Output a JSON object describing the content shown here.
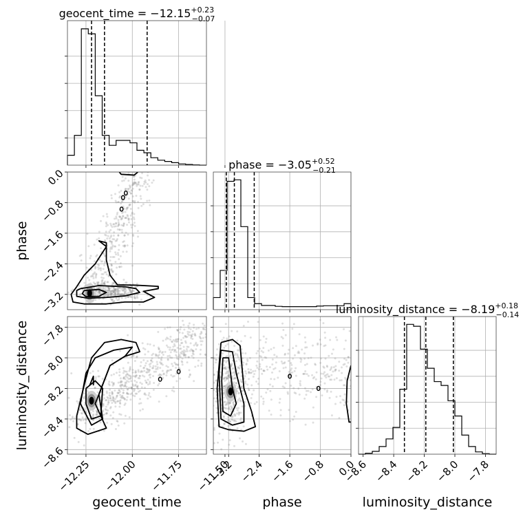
{
  "chart_data": {
    "type": "corner",
    "parameters": [
      {
        "name": "geocent_time",
        "axis_label": "geocent_time",
        "title_main": "geocent_time = −12.15",
        "title_sup": "+0.23",
        "title_sub": "−0.07",
        "range": [
          -12.35,
          -11.6
        ],
        "tick_values": [
          -12.25,
          -12.0,
          -11.75,
          -11.5
        ],
        "tick_labels": [
          "−12.25",
          "−12.00",
          "−11.75",
          "−11.50"
        ],
        "quantiles": [
          -12.22,
          -12.15,
          -11.92
        ],
        "hist_counts": [
          4,
          12,
          55,
          53,
          28,
          12,
          8,
          10,
          10,
          9,
          6,
          5,
          3,
          2,
          1.5,
          1,
          0.5,
          0.3,
          0.1,
          0
        ]
      },
      {
        "name": "phase",
        "axis_label": "phase",
        "title_main": "phase = −3.05",
        "title_sup": "+0.52",
        "title_sub": "−0.21",
        "range": [
          -3.6,
          0.0
        ],
        "tick_values": [
          -3.2,
          -2.4,
          -1.6,
          -0.8,
          0.0
        ],
        "tick_labels": [
          "−3.2",
          "−2.4",
          "−1.6",
          "−0.8",
          "0.0"
        ],
        "quantiles": [
          -3.26,
          -3.05,
          -2.53
        ],
        "hist_counts": [
          8,
          26,
          85,
          86,
          55,
          8,
          4,
          2.8,
          2.8,
          2.2,
          2,
          2,
          2,
          2,
          2,
          2.4,
          2.6,
          2.6,
          2.6,
          4
        ]
      },
      {
        "name": "luminosity_distance",
        "axis_label": "luminosity_distance",
        "title_main": "luminosity_distance = −8.19",
        "title_sup": "+0.18",
        "title_sub": "−0.14",
        "range": [
          -8.63,
          -7.73
        ],
        "tick_values": [
          -8.6,
          -8.4,
          -8.2,
          -8.0,
          -7.8
        ],
        "tick_labels": [
          "−8.6",
          "−8.4",
          "−8.2",
          "−8.0",
          "−7.8"
        ],
        "quantiles": [
          -8.33,
          -8.19,
          -8.01
        ],
        "hist_counts": [
          0,
          0.5,
          1.5,
          4,
          8,
          14,
          34,
          68,
          67,
          55,
          45,
          38,
          36,
          28,
          20,
          10,
          4,
          1.2,
          0.3,
          0
        ]
      }
    ],
    "contours_2d": {
      "phase_vs_geocent_time": {
        "outer": [
          [
            -12.3,
            -3.0
          ],
          [
            -12.26,
            -2.7
          ],
          [
            -12.2,
            -2.4
          ],
          [
            -12.16,
            -2.1
          ],
          [
            -12.14,
            -1.95
          ],
          [
            -12.18,
            -1.8
          ],
          [
            -12.14,
            -1.85
          ],
          [
            -12.14,
            -2.3
          ],
          [
            -12.12,
            -2.7
          ],
          [
            -12.08,
            -2.95
          ],
          [
            -11.98,
            -2.96
          ],
          [
            -11.86,
            -2.99
          ],
          [
            -11.86,
            -3.05
          ],
          [
            -11.94,
            -3.12
          ],
          [
            -11.88,
            -3.28
          ],
          [
            -11.94,
            -3.4
          ],
          [
            -12.04,
            -3.4
          ],
          [
            -12.14,
            -3.45
          ],
          [
            -12.26,
            -3.45
          ],
          [
            -12.32,
            -3.4
          ],
          [
            -12.33,
            -3.2
          ],
          [
            -12.3,
            -3.0
          ]
        ],
        "inner": [
          [
            -12.28,
            -3.05
          ],
          [
            -12.18,
            -2.97
          ],
          [
            -12.04,
            -3.0
          ],
          [
            -11.98,
            -3.05
          ],
          [
            -11.96,
            -3.15
          ],
          [
            -12.04,
            -3.24
          ],
          [
            -12.14,
            -3.28
          ],
          [
            -12.24,
            -3.3
          ],
          [
            -12.3,
            -3.25
          ],
          [
            -12.3,
            -3.1
          ],
          [
            -12.28,
            -3.05
          ]
        ],
        "core": [
          [
            -12.26,
            -3.1
          ],
          [
            -12.18,
            -3.07
          ],
          [
            -12.14,
            -3.15
          ],
          [
            -12.18,
            -3.25
          ],
          [
            -12.25,
            -3.26
          ],
          [
            -12.27,
            -3.18
          ],
          [
            -12.26,
            -3.1
          ]
        ],
        "top_band": [
          [
            -12.07,
            0.0
          ],
          [
            -12.06,
            -0.06
          ],
          [
            -11.99,
            -0.08
          ],
          [
            -11.97,
            0.0
          ]
        ],
        "blips": [
          [
            -12.035,
            -0.55
          ],
          [
            -12.05,
            -0.67
          ],
          [
            -12.058,
            -0.97
          ]
        ],
        "density_peak": [
          -12.23,
          -3.17
        ]
      },
      "luminosity_distance_vs_geocent_time": {
        "outer": [
          [
            -12.3,
            -8.38
          ],
          [
            -12.26,
            -8.18
          ],
          [
            -12.22,
            -8.0
          ],
          [
            -12.15,
            -7.9
          ],
          [
            -12.06,
            -7.88
          ],
          [
            -11.98,
            -7.9
          ],
          [
            -11.96,
            -7.96
          ],
          [
            -12.04,
            -7.99
          ],
          [
            -12.12,
            -8.05
          ],
          [
            -12.2,
            -8.3
          ],
          [
            -12.14,
            -8.46
          ],
          [
            -12.24,
            -8.5
          ],
          [
            -12.3,
            -8.46
          ],
          [
            -12.3,
            -8.38
          ]
        ],
        "mid": [
          [
            -12.28,
            -8.3
          ],
          [
            -12.25,
            -8.1
          ],
          [
            -12.2,
            -8.0
          ],
          [
            -12.1,
            -7.95
          ],
          [
            -12.0,
            -7.93
          ],
          [
            -12.04,
            -7.99
          ],
          [
            -12.12,
            -8.05
          ],
          [
            -12.18,
            -8.24
          ],
          [
            -12.16,
            -8.4
          ],
          [
            -12.22,
            -8.44
          ],
          [
            -12.28,
            -8.3
          ]
        ],
        "inner": [
          [
            -12.25,
            -8.2
          ],
          [
            -12.2,
            -8.15
          ],
          [
            -12.16,
            -8.2
          ],
          [
            -12.17,
            -8.38
          ],
          [
            -12.22,
            -8.4
          ],
          [
            -12.25,
            -8.3
          ],
          [
            -12.25,
            -8.2
          ]
        ],
        "core": [
          [
            -12.23,
            -8.18
          ],
          [
            -12.21,
            -8.12
          ],
          [
            -12.21,
            -8.18
          ]
        ],
        "blips": [
          [
            -11.85,
            -8.14
          ],
          [
            -11.75,
            -8.09
          ]
        ],
        "density_peak": [
          -12.22,
          -8.28
        ]
      },
      "luminosity_distance_vs_phase": {
        "outer": [
          [
            -3.4,
            -7.9
          ],
          [
            -3.1,
            -7.88
          ],
          [
            -2.9,
            -7.92
          ],
          [
            -2.8,
            -8.2
          ],
          [
            -2.6,
            -8.35
          ],
          [
            -2.5,
            -8.45
          ],
          [
            -2.8,
            -8.48
          ],
          [
            -3.2,
            -8.47
          ],
          [
            -3.45,
            -8.45
          ],
          [
            -3.5,
            -8.2
          ],
          [
            -3.4,
            -7.9
          ]
        ],
        "mid": [
          [
            -3.4,
            -7.95
          ],
          [
            -3.1,
            -7.96
          ],
          [
            -3.0,
            -8.1
          ],
          [
            -2.8,
            -8.3
          ],
          [
            -2.8,
            -8.42
          ],
          [
            -3.1,
            -8.44
          ],
          [
            -3.4,
            -8.4
          ],
          [
            -3.45,
            -8.1
          ],
          [
            -3.4,
            -7.95
          ]
        ],
        "inner": [
          [
            -3.35,
            -8.0
          ],
          [
            -3.2,
            -8.0
          ],
          [
            -3.1,
            -8.2
          ],
          [
            -3.0,
            -8.3
          ],
          [
            -3.15,
            -8.38
          ],
          [
            -3.35,
            -8.35
          ],
          [
            -3.38,
            -8.15
          ],
          [
            -3.35,
            -8.0
          ]
        ],
        "right_edge": [
          [
            0.0,
            -8.05
          ],
          [
            -0.1,
            -8.15
          ],
          [
            -0.12,
            -8.3
          ],
          [
            -0.05,
            -8.42
          ],
          [
            0.0,
            -8.42
          ]
        ],
        "blips": [
          [
            -1.6,
            -8.12
          ],
          [
            -0.85,
            -8.2
          ]
        ],
        "density_peak": [
          -3.15,
          -8.22
        ]
      }
    },
    "grid": true,
    "quantile_line_style": "dashed"
  }
}
